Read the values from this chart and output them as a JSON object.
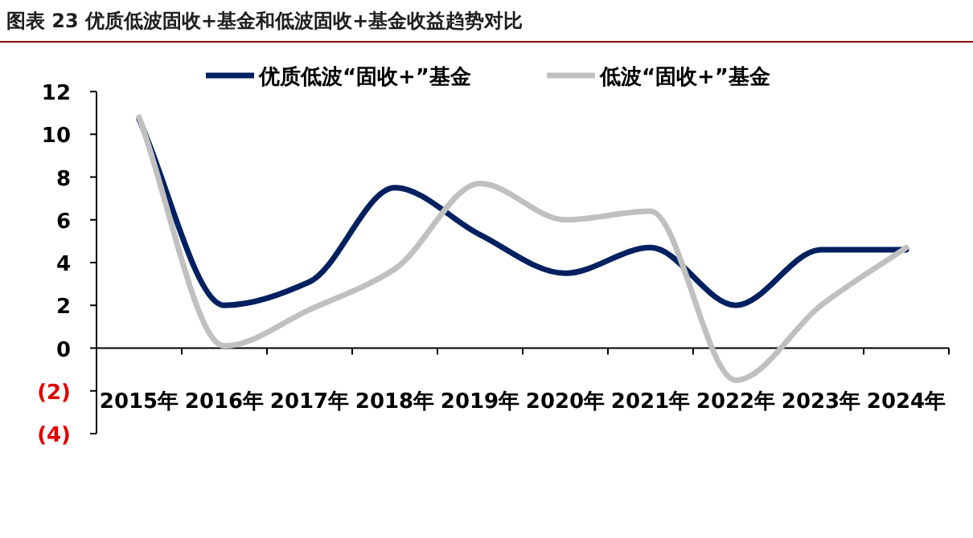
{
  "chart_data": {
    "type": "line",
    "title": "图表 23  优质低波固收+基金和低波固收+基金收益趋势对比",
    "categories": [
      "2015年",
      "2016年",
      "2017年",
      "2018年",
      "2019年",
      "2020年",
      "2021年",
      "2022年",
      "2023年",
      "2024年"
    ],
    "series": [
      {
        "name": "优质低波“固收+”基金",
        "color": "#002060",
        "values": [
          10.7,
          2.0,
          3.1,
          7.5,
          5.3,
          3.5,
          4.7,
          2.0,
          4.6,
          4.6
        ]
      },
      {
        "name": "低波“固收+”基金",
        "color": "#c0c0c0",
        "values": [
          10.8,
          0.1,
          1.8,
          3.7,
          7.7,
          6.0,
          6.4,
          -1.5,
          2.0,
          4.7
        ]
      }
    ],
    "ylim": [
      -4,
      12
    ],
    "yticks": [
      {
        "value": -4,
        "label": "(4)"
      },
      {
        "value": -2,
        "label": "(2)"
      },
      0,
      2,
      4,
      6,
      8,
      10,
      12
    ],
    "legend": "top",
    "grid": false,
    "marker": "none",
    "line_style": "solid"
  }
}
